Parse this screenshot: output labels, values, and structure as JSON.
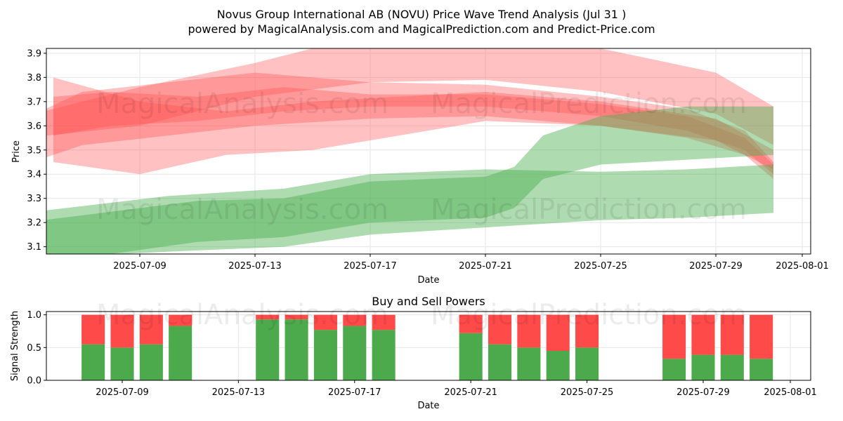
{
  "title_line1": "Novus Group International AB (NOVU) Price Wave Trend Analysis (Jul 31 )",
  "title_line2": "powered by MagicalAnalysis.com and MagicalPrediction.com and Predict-Price.com",
  "watermarks": [
    "MagicalAnalysis.com",
    "MagicalPrediction.com"
  ],
  "colors": {
    "red_band": "#ff4d4d",
    "green_band": "#4caf50",
    "buy": "#4caa4c",
    "sell": "#ff4a4a",
    "grid": "#e6e6e6"
  },
  "chart_data": [
    {
      "type": "area",
      "title": "",
      "xlabel": "Date",
      "ylabel": "Price",
      "ylim": [
        3.07,
        3.92
      ],
      "xlim": [
        "2025-07-05",
        "2025-08-01"
      ],
      "x_ticks": [
        "2025-07-09",
        "2025-07-13",
        "2025-07-17",
        "2025-07-21",
        "2025-07-25",
        "2025-07-29",
        "2025-08-01"
      ],
      "y_ticks": [
        3.1,
        3.2,
        3.3,
        3.4,
        3.5,
        3.6,
        3.7,
        3.8,
        3.9
      ],
      "series": [
        {
          "color": "red",
          "lower": [
            [
              "2025-07-05",
              3.44
            ],
            [
              "2025-07-07",
              3.52
            ],
            [
              "2025-07-10",
              3.56
            ],
            [
              "2025-07-13",
              3.6
            ],
            [
              "2025-07-17",
              3.63
            ],
            [
              "2025-07-21",
              3.64
            ],
            [
              "2025-07-25",
              3.6
            ],
            [
              "2025-07-28",
              3.55
            ],
            [
              "2025-07-30",
              3.48
            ],
            [
              "2025-07-31",
              3.38
            ]
          ],
          "upper": [
            [
              "2025-07-05",
              3.63
            ],
            [
              "2025-07-07",
              3.74
            ],
            [
              "2025-07-10",
              3.78
            ],
            [
              "2025-07-13",
              3.82
            ],
            [
              "2025-07-17",
              3.78
            ],
            [
              "2025-07-21",
              3.77
            ],
            [
              "2025-07-25",
              3.72
            ],
            [
              "2025-07-28",
              3.67
            ],
            [
              "2025-07-30",
              3.58
            ],
            [
              "2025-07-31",
              3.45
            ]
          ]
        },
        {
          "color": "red",
          "lower": [
            [
              "2025-07-06",
              3.56
            ],
            [
              "2025-07-08",
              3.6
            ],
            [
              "2025-07-11",
              3.62
            ],
            [
              "2025-07-14",
              3.66
            ],
            [
              "2025-07-17",
              3.68
            ],
            [
              "2025-07-21",
              3.68
            ],
            [
              "2025-07-25",
              3.64
            ],
            [
              "2025-07-28",
              3.58
            ],
            [
              "2025-07-30",
              3.5
            ],
            [
              "2025-07-31",
              3.4
            ]
          ],
          "upper": [
            [
              "2025-07-06",
              3.72
            ],
            [
              "2025-07-08",
              3.74
            ],
            [
              "2025-07-11",
              3.72
            ],
            [
              "2025-07-14",
              3.76
            ],
            [
              "2025-07-17",
              3.73
            ],
            [
              "2025-07-21",
              3.73
            ],
            [
              "2025-07-25",
              3.69
            ],
            [
              "2025-07-28",
              3.64
            ],
            [
              "2025-07-30",
              3.55
            ],
            [
              "2025-07-31",
              3.44
            ]
          ]
        },
        {
          "color": "red",
          "lower": [
            [
              "2025-07-05",
              3.55
            ],
            [
              "2025-07-09",
              3.6
            ],
            [
              "2025-07-13",
              3.72
            ],
            [
              "2025-07-17",
              3.78
            ],
            [
              "2025-07-21",
              3.79
            ],
            [
              "2025-07-25",
              3.74
            ],
            [
              "2025-07-29",
              3.65
            ],
            [
              "2025-07-31",
              3.52
            ]
          ],
          "upper": [
            [
              "2025-07-05",
              3.64
            ],
            [
              "2025-07-09",
              3.76
            ],
            [
              "2025-07-13",
              3.86
            ],
            [
              "2025-07-15",
              3.92
            ],
            [
              "2025-07-21",
              3.92
            ],
            [
              "2025-07-25",
              3.92
            ],
            [
              "2025-07-29",
              3.82
            ],
            [
              "2025-07-31",
              3.68
            ]
          ]
        },
        {
          "color": "red",
          "lower": [
            [
              "2025-07-06",
              3.45
            ],
            [
              "2025-07-09",
              3.4
            ],
            [
              "2025-07-12",
              3.48
            ],
            [
              "2025-07-15",
              3.5
            ],
            [
              "2025-07-18",
              3.56
            ],
            [
              "2025-07-21",
              3.62
            ],
            [
              "2025-07-25",
              3.6
            ],
            [
              "2025-07-29",
              3.54
            ],
            [
              "2025-07-31",
              3.42
            ]
          ],
          "upper": [
            [
              "2025-07-06",
              3.8
            ],
            [
              "2025-07-09",
              3.7
            ],
            [
              "2025-07-12",
              3.66
            ],
            [
              "2025-07-15",
              3.7
            ],
            [
              "2025-07-18",
              3.72
            ],
            [
              "2025-07-21",
              3.74
            ],
            [
              "2025-07-25",
              3.7
            ],
            [
              "2025-07-29",
              3.63
            ],
            [
              "2025-07-31",
              3.5
            ]
          ]
        },
        {
          "color": "green",
          "lower": [
            [
              "2025-07-05",
              3.05
            ],
            [
              "2025-07-10",
              3.08
            ],
            [
              "2025-07-14",
              3.1
            ],
            [
              "2025-07-17",
              3.15
            ],
            [
              "2025-07-21",
              3.18
            ],
            [
              "2025-07-25",
              3.21
            ],
            [
              "2025-07-28",
              3.22
            ],
            [
              "2025-07-31",
              3.24
            ]
          ],
          "upper": [
            [
              "2025-07-05",
              3.24
            ],
            [
              "2025-07-10",
              3.31
            ],
            [
              "2025-07-14",
              3.34
            ],
            [
              "2025-07-17",
              3.4
            ],
            [
              "2025-07-21",
              3.42
            ],
            [
              "2025-07-25",
              3.41
            ],
            [
              "2025-07-28",
              3.42
            ],
            [
              "2025-07-31",
              3.44
            ]
          ]
        },
        {
          "color": "green",
          "lower": [
            [
              "2025-07-05",
              3.02
            ],
            [
              "2025-07-11",
              3.12
            ],
            [
              "2025-07-14",
              3.14
            ],
            [
              "2025-07-17",
              3.2
            ],
            [
              "2025-07-21",
              3.22
            ],
            [
              "2025-07-22",
              3.26
            ],
            [
              "2025-07-23",
              3.38
            ],
            [
              "2025-07-25",
              3.44
            ],
            [
              "2025-07-28",
              3.46
            ],
            [
              "2025-07-31",
              3.48
            ]
          ],
          "upper": [
            [
              "2025-07-05",
              3.2
            ],
            [
              "2025-07-11",
              3.29
            ],
            [
              "2025-07-14",
              3.3
            ],
            [
              "2025-07-17",
              3.37
            ],
            [
              "2025-07-21",
              3.39
            ],
            [
              "2025-07-22",
              3.43
            ],
            [
              "2025-07-23",
              3.56
            ],
            [
              "2025-07-25",
              3.64
            ],
            [
              "2025-07-28",
              3.68
            ],
            [
              "2025-07-31",
              3.68
            ]
          ]
        }
      ]
    },
    {
      "type": "bar",
      "title": "Buy and Sell Powers",
      "xlabel": "Date",
      "ylabel": "Signal Strength",
      "ylim": [
        0,
        1.05
      ],
      "y_ticks": [
        0.0,
        0.5,
        1.0
      ],
      "x_ticks": [
        "2025-07-09",
        "2025-07-13",
        "2025-07-17",
        "2025-07-21",
        "2025-07-25",
        "2025-07-29",
        "2025-08-01"
      ],
      "dates": [
        "2025-07-08",
        "2025-07-09",
        "2025-07-10",
        "2025-07-11",
        "2025-07-14",
        "2025-07-15",
        "2025-07-16",
        "2025-07-17",
        "2025-07-18",
        "2025-07-21",
        "2025-07-22",
        "2025-07-23",
        "2025-07-24",
        "2025-07-25",
        "2025-07-28",
        "2025-07-29",
        "2025-07-30",
        "2025-07-31"
      ],
      "series": [
        {
          "name": "Buy",
          "values": [
            0.55,
            0.5,
            0.55,
            0.83,
            0.93,
            0.93,
            0.77,
            0.83,
            0.77,
            0.72,
            0.55,
            0.5,
            0.45,
            0.5,
            0.33,
            0.39,
            0.39,
            0.33
          ]
        },
        {
          "name": "Sell",
          "values": [
            0.45,
            0.5,
            0.45,
            0.17,
            0.07,
            0.07,
            0.23,
            0.17,
            0.23,
            0.28,
            0.45,
            0.5,
            0.55,
            0.5,
            0.67,
            0.61,
            0.61,
            0.67
          ]
        }
      ]
    }
  ]
}
